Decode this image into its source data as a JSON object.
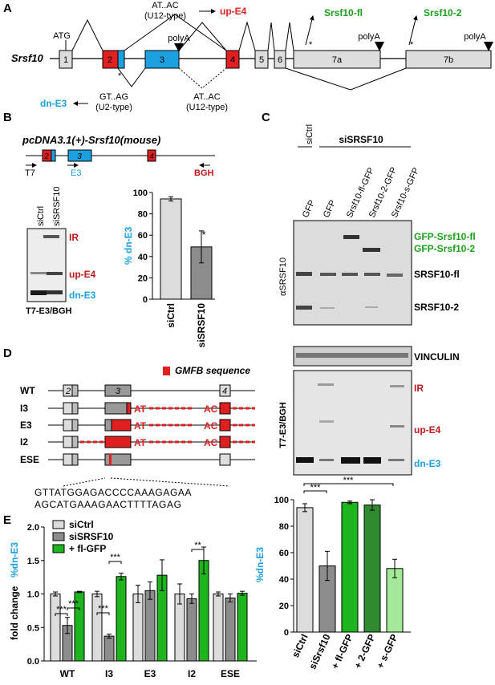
{
  "panel_labels": {
    "a": "A",
    "b": "B",
    "c": "C",
    "d": "D",
    "e": "E"
  },
  "panel_a": {
    "gene": "Srsf10",
    "exons": [
      "1",
      "2",
      "3",
      "4",
      "5",
      "6",
      "7a",
      "7b"
    ],
    "atg": "ATG",
    "polya": "polyA",
    "at_ac_top_1": "AT..AC",
    "at_ac_top_2": "(U12-type)",
    "up_e4": "up-E4",
    "srsf10_fl": "Srsf10-fl",
    "srsf10_2": "Srsf10-2",
    "gt_ag_1": "GT..AG",
    "gt_ag_2": "(U2-type)",
    "at_ac_bot_1": "AT..AC",
    "at_ac_bot_2": "(U12-type)",
    "dn_e3": "dn-E3",
    "star": "*"
  },
  "panel_b": {
    "construct": "pcDNA3.1(+)-Srsf10(mouse)",
    "exons": [
      "2",
      "3",
      "4"
    ],
    "primers": [
      "T7",
      "E3",
      "BGH"
    ],
    "lanes": [
      "siCtrl",
      "siSRSF10"
    ],
    "bands": [
      "IR",
      "up-E4",
      "dn-E3"
    ],
    "blot_caption": "T7-E3/BGH",
    "star": "*"
  },
  "chart_b": {
    "type": "bar",
    "categories": [
      "siCtrl",
      "siSRSF10"
    ],
    "values": [
      94,
      49
    ],
    "errors": [
      2,
      15
    ],
    "colors": [
      "#dcdcdc",
      "#8c8c8c"
    ],
    "ylabel": "% dn-E3",
    "ylim": [
      0,
      100
    ],
    "yticks": [
      "0",
      "20",
      "40",
      "60",
      "80",
      "100"
    ],
    "sig": "*"
  },
  "panel_c": {
    "group_ctrl": "siCtrl",
    "group_si": "siSRSF10",
    "lanes": [
      "GFP",
      "GFP",
      "Srsf10-fl-GFP",
      "Srsf10-2-GFP",
      "Srsf10-s-GFP"
    ],
    "antibody": "αSRSF10",
    "bands_top": [
      "GFP-Srsf10-fl",
      "GFP-Srsf10-2",
      "SRSF10-fl",
      "SRSF10-2"
    ],
    "vinculin": "VINCULIN",
    "pcr": "T7-E3/BGH",
    "bands_pcr": [
      "IR",
      "up-E4",
      "dn-E3"
    ]
  },
  "chart_c": {
    "type": "bar",
    "categories": [
      "siCtrl",
      "siSrsf10",
      "+ fl-GFP",
      "+ 2-GFP",
      "+ s-GFP"
    ],
    "values": [
      94,
      50,
      98,
      96,
      48
    ],
    "errors": [
      3,
      11,
      1,
      4,
      7
    ],
    "colors": [
      "#dcdcdc",
      "#8c8c8c",
      "#1db41d",
      "#2f8a2f",
      "#a5e89a"
    ],
    "ylabel": "%dn-E3",
    "ylim": [
      0,
      100
    ],
    "yticks": [
      "0",
      "20",
      "40",
      "60",
      "80",
      "100"
    ],
    "sig1": "***",
    "sig2": "***"
  },
  "panel_d": {
    "legend": "GMFB sequence",
    "rows": [
      "WT",
      "I3",
      "E3",
      "I2",
      "ESE"
    ],
    "exons": [
      "2",
      "3",
      "4"
    ],
    "at": "AT",
    "ac": "AC",
    "seq1": "GTTATGGAGACCCCAAAGAGAA",
    "seq2": "AGCATGAAAGAACTTTTAGAG"
  },
  "chart_e": {
    "type": "bar",
    "categories": [
      "WT",
      "I3",
      "E3",
      "I2",
      "ESE"
    ],
    "series": [
      {
        "name": "siCtrl",
        "values": [
          1.0,
          1.0,
          1.0,
          1.0,
          1.0
        ],
        "errors": [
          0.03,
          0.04,
          0.13,
          0.15,
          0.03
        ]
      },
      {
        "name": "siSRSF10",
        "values": [
          0.53,
          0.37,
          1.05,
          0.93,
          0.94
        ],
        "errors": [
          0.12,
          0.03,
          0.13,
          0.07,
          0.06
        ]
      },
      {
        "name": "+ fl-GFP",
        "values": [
          1.03,
          1.26,
          1.28,
          1.5,
          1.01
        ],
        "errors": [
          0.01,
          0.05,
          0.23,
          0.2,
          0.03
        ]
      }
    ],
    "colors": [
      "#dcdcdc",
      "#8c8c8c",
      "#1db41d"
    ],
    "ylabel_a": "fold change",
    "ylabel_b": "%dn-E3",
    "ylim": [
      0,
      2.0
    ],
    "yticks": [
      "0.0",
      "0.5",
      "1.0",
      "1.5",
      "2.0"
    ],
    "sig": [
      "***",
      "***",
      "***",
      "***",
      "**"
    ]
  }
}
